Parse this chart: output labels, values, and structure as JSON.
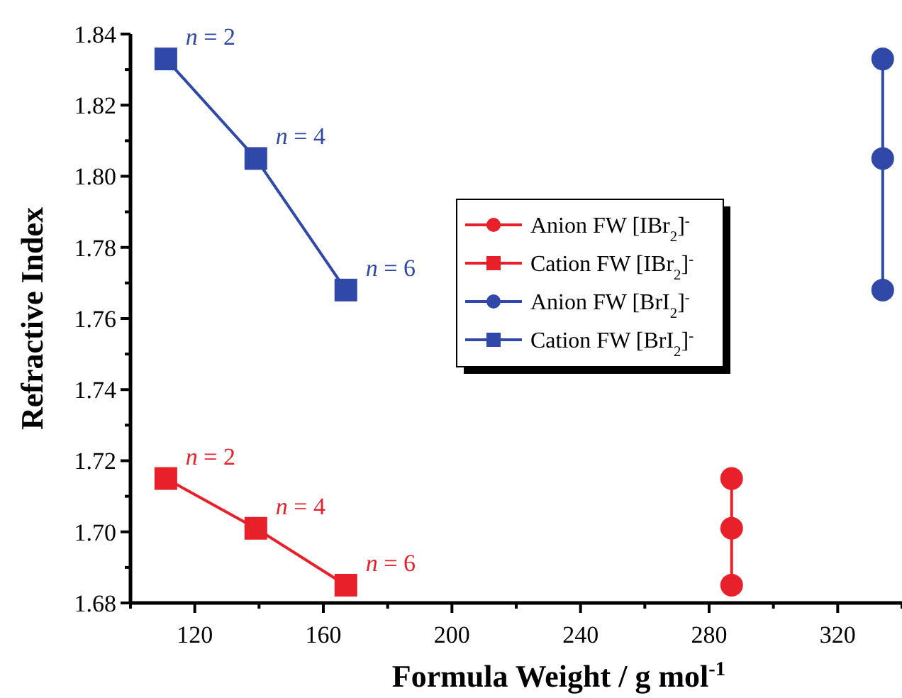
{
  "chart_data": {
    "type": "line",
    "xlabel": "Formula Weight / g mol$^{-1}$",
    "ylabel": "Refractive Index",
    "xlim": [
      100,
      340
    ],
    "xticks": [
      {
        "value": 100,
        "label": null
      },
      120,
      {
        "value": 140,
        "label": null
      },
      160,
      {
        "value": 180,
        "label": null
      },
      200,
      {
        "value": 220,
        "label": null
      },
      240,
      {
        "value": 260,
        "label": null
      },
      280,
      {
        "value": 300,
        "label": null
      },
      320,
      {
        "value": 340,
        "label": null
      }
    ],
    "ylim": [
      1.68,
      1.84
    ],
    "yticks": [
      1.68,
      {
        "value": 1.69,
        "label": null
      },
      {
        "value": 1.7,
        "label": "1.70"
      },
      {
        "value": 1.71,
        "label": null
      },
      1.72,
      {
        "value": 1.73,
        "label": null
      },
      1.74,
      {
        "value": 1.75,
        "label": null
      },
      1.76,
      {
        "value": 1.77,
        "label": null
      },
      1.78,
      {
        "value": 1.79,
        "label": null
      },
      {
        "value": 1.8,
        "label": "1.80"
      },
      {
        "value": 1.81,
        "label": null
      },
      1.82,
      {
        "value": 1.83,
        "label": null
      },
      1.84
    ],
    "grid": false,
    "legend": "right",
    "line_style": "solid",
    "series": [
      {
        "name": "Anion FW [IBr$_{2}$]$^{-}$",
        "color": "#e8202a",
        "marker": "circle",
        "x": [
          287,
          287,
          287
        ],
        "values": [
          1.715,
          1.701,
          1.685
        ]
      },
      {
        "name": "Cation FW [IBr$_{2}$]$^{-}$",
        "color": "#e8202a",
        "marker": "square",
        "x": [
          111,
          139,
          167
        ],
        "values": [
          1.715,
          1.701,
          1.685
        ]
      },
      {
        "name": "Anion FW [BrI$_{2}$]$^{-}$",
        "color": "#3048a8",
        "marker": "circle",
        "x": [
          334,
          334,
          334
        ],
        "values": [
          1.833,
          1.805,
          1.768
        ]
      },
      {
        "name": "Cation FW [BrI$_{2}$]$^{-}$",
        "color": "#3048a8",
        "marker": "square",
        "x": [
          111,
          139,
          167
        ],
        "values": [
          1.833,
          1.805,
          1.768
        ]
      }
    ],
    "annotations": [
      {
        "text": "n = 2",
        "x": 111,
        "y": 1.833
      },
      {
        "text": "n = 4",
        "x": 139,
        "y": 1.805
      },
      {
        "text": "n = 6",
        "x": 167,
        "y": 1.768
      },
      {
        "text": "n = 2",
        "x": 111,
        "y": 1.715
      },
      {
        "text": "n = 4",
        "x": 139,
        "y": 1.701
      },
      {
        "text": "n = 6",
        "x": 167,
        "y": 1.685
      }
    ]
  }
}
